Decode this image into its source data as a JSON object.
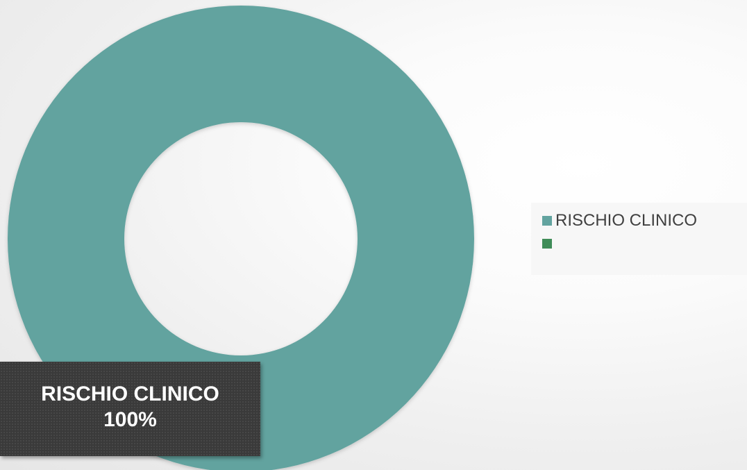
{
  "chart_data": {
    "type": "pie",
    "variant": "doughnut",
    "categories": [
      "RISCHIO CLINICO",
      ""
    ],
    "values": [
      100,
      0
    ],
    "colors": [
      "#62a39f",
      "#3f8c58"
    ],
    "legend": {
      "position": "right",
      "entries": [
        "RISCHIO CLINICO",
        ""
      ]
    },
    "data_label": {
      "category": "RISCHIO CLINICO",
      "value": "100%"
    },
    "title": ""
  }
}
